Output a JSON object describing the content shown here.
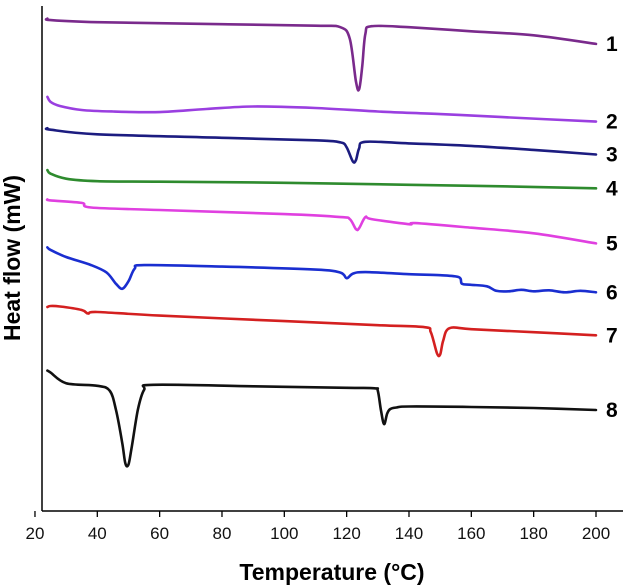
{
  "chart_data": {
    "type": "line",
    "title": "",
    "xlabel": "Temperature (°C)",
    "ylabel": "Heat flow (mW)",
    "xlim": [
      20,
      205
    ],
    "ylim": [
      0,
      100
    ],
    "xticks": [
      20,
      40,
      60,
      80,
      100,
      120,
      140,
      160,
      180,
      200
    ],
    "xtick_labels": [
      "20",
      "40",
      "60",
      "80",
      "100",
      "120",
      "140",
      "160",
      "180",
      "200"
    ],
    "y_ticks_shown": false,
    "grid": false,
    "legend": "curve numbers at right end of each trace",
    "series": [
      {
        "name": "1",
        "color": "#7a2a8c",
        "points": [
          [
            24,
            97.5
          ],
          [
            25,
            97.2
          ],
          [
            40,
            96.8
          ],
          [
            80,
            96.4
          ],
          [
            110,
            96.1
          ],
          [
            118,
            95.8
          ],
          [
            121,
            93.5
          ],
          [
            123,
            85
          ],
          [
            124,
            83.5
          ],
          [
            125,
            88
          ],
          [
            126,
            94.5
          ],
          [
            128,
            96.0
          ],
          [
            140,
            95.8
          ],
          [
            160,
            95.0
          ],
          [
            180,
            94.2
          ],
          [
            200,
            92.5
          ]
        ]
      },
      {
        "name": "2",
        "color": "#9a3fe0",
        "points": [
          [
            24,
            82
          ],
          [
            25,
            81
          ],
          [
            28,
            80.2
          ],
          [
            35,
            79.4
          ],
          [
            45,
            79.1
          ],
          [
            60,
            79.0
          ],
          [
            75,
            79.6
          ],
          [
            90,
            80.1
          ],
          [
            110,
            79.8
          ],
          [
            130,
            79.1
          ],
          [
            150,
            78.6
          ],
          [
            170,
            78.0
          ],
          [
            200,
            77.1
          ]
        ]
      },
      {
        "name": "3",
        "color": "#1c1c80",
        "points": [
          [
            24,
            75.8
          ],
          [
            25,
            75.5
          ],
          [
            40,
            74.6
          ],
          [
            80,
            73.9
          ],
          [
            110,
            73.4
          ],
          [
            118,
            73.0
          ],
          [
            120,
            72.0
          ],
          [
            122,
            69.2
          ],
          [
            123,
            69.5
          ],
          [
            124,
            71.8
          ],
          [
            126,
            73.1
          ],
          [
            140,
            72.8
          ],
          [
            160,
            72.3
          ],
          [
            180,
            71.5
          ],
          [
            200,
            70.6
          ]
        ]
      },
      {
        "name": "4",
        "color": "#2e8b2e",
        "points": [
          [
            24,
            67.5
          ],
          [
            25,
            66.8
          ],
          [
            30,
            65.8
          ],
          [
            40,
            65.3
          ],
          [
            60,
            65.2
          ],
          [
            100,
            65.0
          ],
          [
            140,
            64.6
          ],
          [
            170,
            64.3
          ],
          [
            200,
            63.9
          ]
        ]
      },
      {
        "name": "5",
        "color": "#e040e0",
        "points": [
          [
            24,
            61.7
          ],
          [
            25,
            61.5
          ],
          [
            35,
            61.0
          ],
          [
            38,
            60.1
          ],
          [
            60,
            59.6
          ],
          [
            100,
            58.8
          ],
          [
            118,
            58.2
          ],
          [
            121,
            57.8
          ],
          [
            123,
            55.8
          ],
          [
            124,
            56.0
          ],
          [
            126,
            58.2
          ],
          [
            128,
            57.8
          ],
          [
            140,
            56.8
          ],
          [
            142,
            57.0
          ],
          [
            160,
            56.1
          ],
          [
            180,
            55.0
          ],
          [
            200,
            53.0
          ]
        ]
      },
      {
        "name": "6",
        "color": "#1a2ed0",
        "points": [
          [
            24,
            52.2
          ],
          [
            25,
            51.7
          ],
          [
            30,
            50.3
          ],
          [
            38,
            48.7
          ],
          [
            43,
            47.2
          ],
          [
            46,
            45.0
          ],
          [
            48,
            44.0
          ],
          [
            50,
            45.5
          ],
          [
            52,
            48.0
          ],
          [
            55,
            48.7
          ],
          [
            80,
            48.4
          ],
          [
            110,
            47.8
          ],
          [
            118,
            47.2
          ],
          [
            120,
            46.1
          ],
          [
            122,
            47.0
          ],
          [
            126,
            47.3
          ],
          [
            140,
            46.9
          ],
          [
            150,
            46.7
          ],
          [
            156,
            46.3
          ],
          [
            157,
            45.0
          ],
          [
            160,
            44.8
          ],
          [
            165,
            44.5
          ],
          [
            168,
            43.6
          ],
          [
            172,
            43.5
          ],
          [
            176,
            43.8
          ],
          [
            180,
            43.5
          ],
          [
            185,
            43.7
          ],
          [
            190,
            43.3
          ],
          [
            195,
            43.6
          ],
          [
            200,
            43.3
          ]
        ]
      },
      {
        "name": "7",
        "color": "#d42020",
        "points": [
          [
            24,
            40.4
          ],
          [
            25,
            40.6
          ],
          [
            28,
            40.5
          ],
          [
            35,
            39.8
          ],
          [
            37,
            39.1
          ],
          [
            40,
            39.4
          ],
          [
            60,
            38.7
          ],
          [
            100,
            37.6
          ],
          [
            130,
            36.8
          ],
          [
            145,
            36.4
          ],
          [
            147,
            35.4
          ],
          [
            149,
            31.2
          ],
          [
            150,
            31.0
          ],
          [
            151,
            33.8
          ],
          [
            153,
            36.2
          ],
          [
            160,
            36.0
          ],
          [
            180,
            35.4
          ],
          [
            200,
            34.8
          ]
        ]
      },
      {
        "name": "8",
        "color": "#111111",
        "points": [
          [
            24,
            27.8
          ],
          [
            25,
            27.4
          ],
          [
            30,
            25.3
          ],
          [
            40,
            24.8
          ],
          [
            44,
            23.8
          ],
          [
            46,
            20.0
          ],
          [
            48,
            13.5
          ],
          [
            49,
            9.4
          ],
          [
            50,
            9.2
          ],
          [
            51,
            12.5
          ],
          [
            53,
            20.0
          ],
          [
            55,
            24.0
          ],
          [
            58,
            25.0
          ],
          [
            90,
            24.7
          ],
          [
            120,
            24.4
          ],
          [
            129,
            24.3
          ],
          [
            130,
            23.8
          ],
          [
            131,
            20.0
          ],
          [
            132,
            17.2
          ],
          [
            133,
            19.3
          ],
          [
            134,
            20.2
          ],
          [
            136,
            20.5
          ],
          [
            140,
            20.7
          ],
          [
            160,
            20.6
          ],
          [
            180,
            20.4
          ],
          [
            200,
            20.0
          ]
        ]
      }
    ]
  }
}
